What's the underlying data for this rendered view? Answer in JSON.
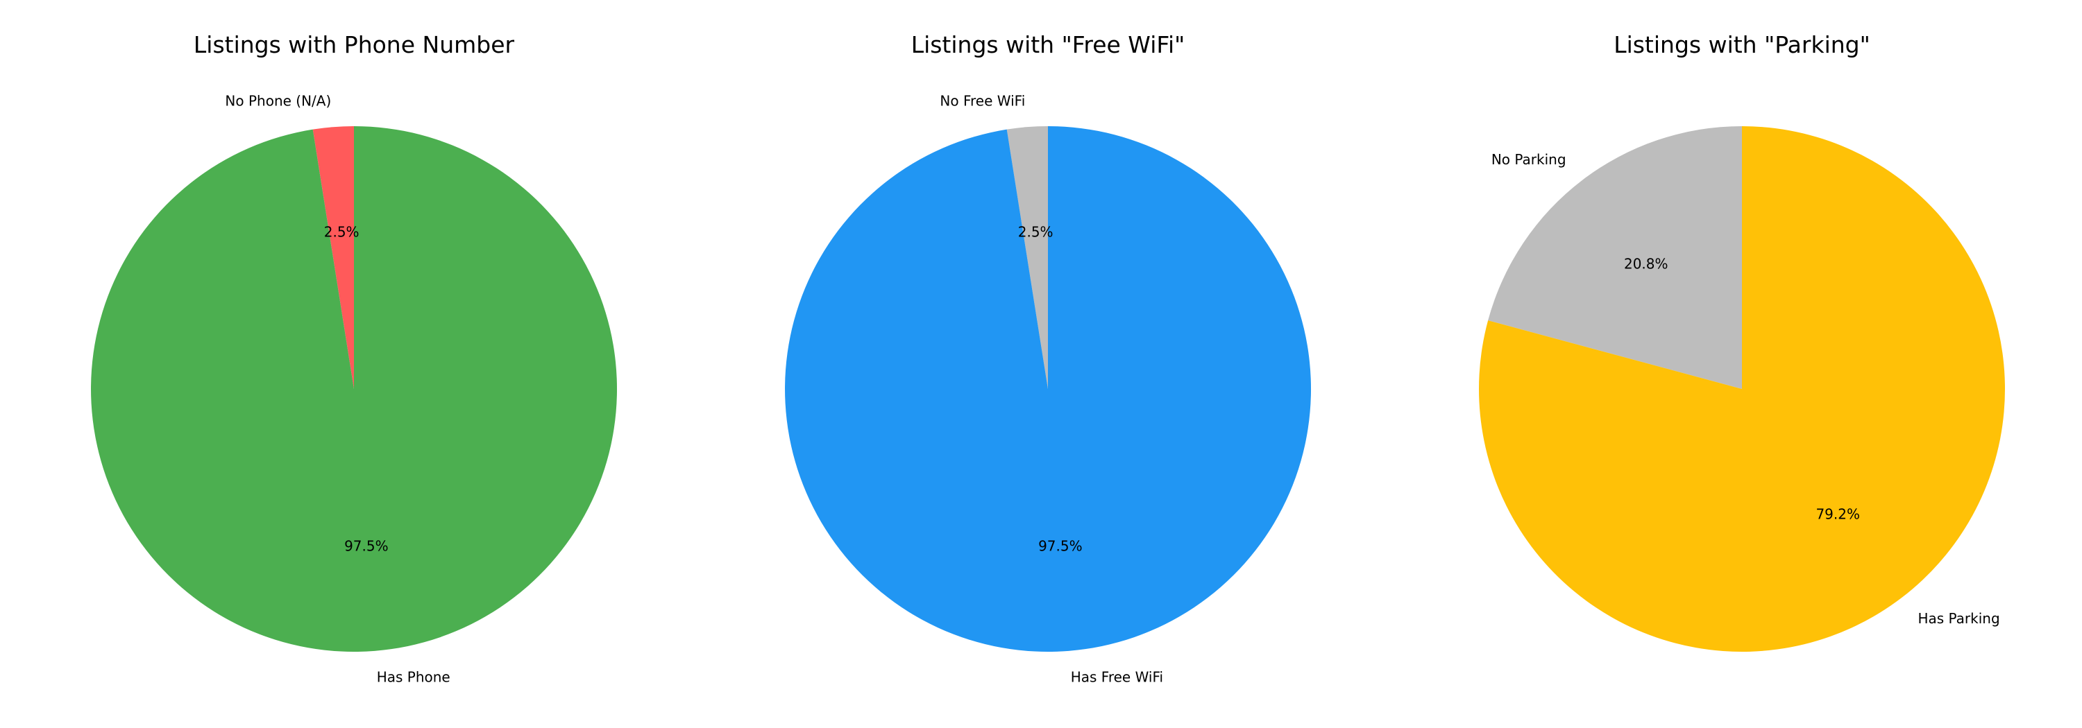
{
  "chart_data": [
    {
      "type": "pie",
      "title": "Listings with Phone Number",
      "slices": [
        {
          "label": "No Phone (N/A)",
          "value": 2.5,
          "pct_label": "2.5%",
          "color": "#FF5A5A"
        },
        {
          "label": "Has Phone",
          "value": 97.5,
          "pct_label": "97.5%",
          "color": "#4CAF50"
        }
      ]
    },
    {
      "type": "pie",
      "title": "Listings with \"Free WiFi\"",
      "slices": [
        {
          "label": "No Free WiFi",
          "value": 2.5,
          "pct_label": "2.5%",
          "color": "#BDBDBD"
        },
        {
          "label": "Has Free WiFi",
          "value": 97.5,
          "pct_label": "97.5%",
          "color": "#2196F3"
        }
      ]
    },
    {
      "type": "pie",
      "title": "Listings with \"Parking\"",
      "slices": [
        {
          "label": "No Parking",
          "value": 20.8,
          "pct_label": "20.8%",
          "color": "#BDBDBD"
        },
        {
          "label": "Has Parking",
          "value": 79.2,
          "pct_label": "79.2%",
          "color": "#FFC107"
        }
      ]
    }
  ]
}
